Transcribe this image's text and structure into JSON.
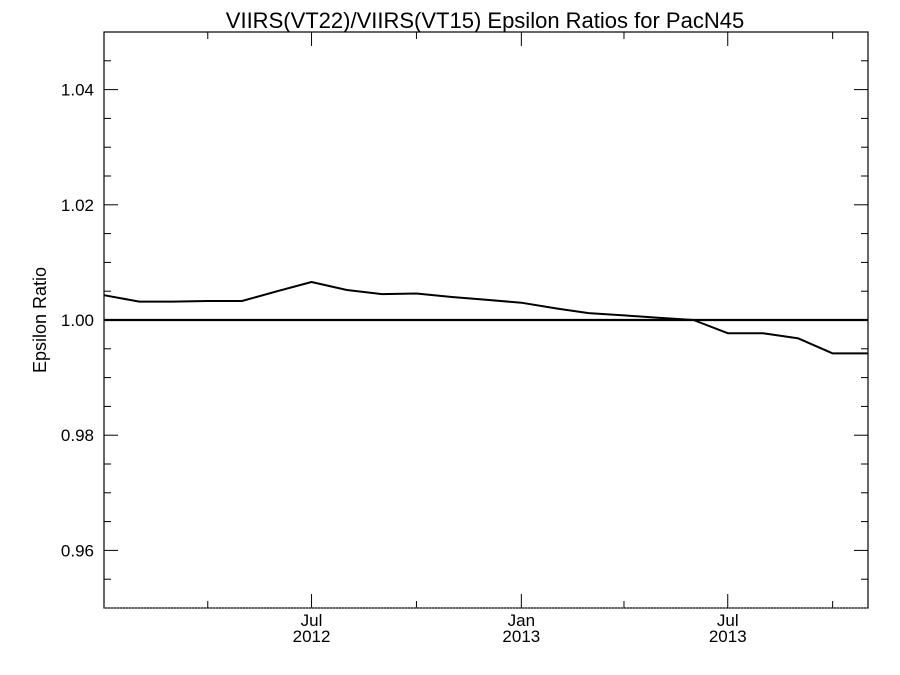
{
  "chart_data": {
    "type": "line",
    "title": "VIIRS(VT22)/VIIRS(VT15)  Epsilon Ratios for PacN45",
    "ylabel": "Epsilon Ratio",
    "xlabel": "",
    "ylim": [
      0.95,
      1.05
    ],
    "xlim": [
      "2012-01-01",
      "2013-11-01"
    ],
    "yticks": [
      "0.96",
      "0.98",
      "1.00",
      "1.02",
      "1.04"
    ],
    "xticks": [
      {
        "line1": "Jul",
        "line2": "2012",
        "date": "2012-07-01"
      },
      {
        "line1": "Jan",
        "line2": "2013",
        "date": "2013-01-01"
      },
      {
        "line1": "Jul",
        "line2": "2013",
        "date": "2013-07-01"
      }
    ],
    "reference_line": 1.0,
    "grid": false,
    "series": [
      {
        "x": [
          "2012-01-01",
          "2012-02-01",
          "2012-03-01",
          "2012-04-01",
          "2012-05-01",
          "2012-06-01",
          "2012-07-01",
          "2012-08-01",
          "2012-09-01",
          "2012-10-01",
          "2012-11-01",
          "2012-12-01",
          "2013-01-01",
          "2013-02-01",
          "2013-03-01",
          "2013-04-01",
          "2013-05-01",
          "2013-06-01",
          "2013-07-01",
          "2013-08-01",
          "2013-09-01",
          "2013-10-01",
          "2013-11-01"
        ],
        "values": [
          1.0043,
          1.0032,
          1.0032,
          1.0033,
          1.0033,
          1.005,
          1.0066,
          1.0052,
          1.0045,
          1.0046,
          1.004,
          1.0035,
          1.003,
          1.002,
          1.0012,
          1.0008,
          1.0004,
          1.0,
          0.9977,
          0.9977,
          0.9968,
          0.9942,
          0.9942
        ]
      }
    ]
  }
}
